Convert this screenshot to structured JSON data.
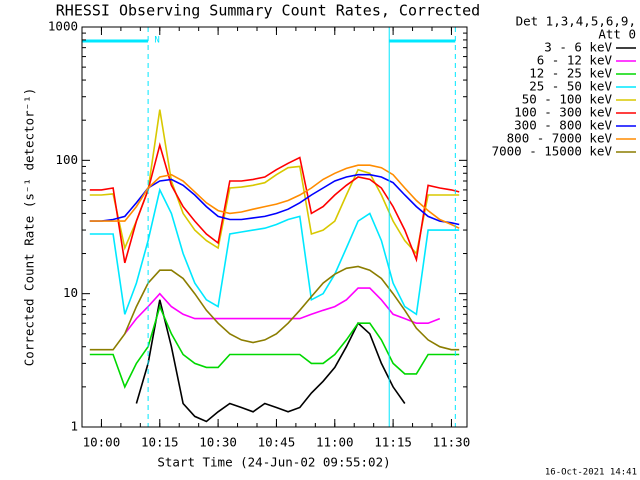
{
  "chart_data": {
    "type": "line",
    "title": "RHESSI Observing Summary Count Rates, Corrected",
    "xlabel": "Start Time (24-Jun-02 09:55:02)",
    "ylabel": "Corrected Count Rate (s⁻¹ detector⁻¹)",
    "legend_header": [
      "Det 1,3,4,5,6,9,",
      "Att 0"
    ],
    "footer": "16-Oct-2021 14:41",
    "log_scale": true,
    "xlim": [
      "09:55",
      "11:34"
    ],
    "xticks": [
      "10:00",
      "10:15",
      "10:30",
      "10:45",
      "11:00",
      "11:15",
      "11:30"
    ],
    "ylim": [
      1,
      1000
    ],
    "yticks": [
      1,
      10,
      100,
      1000
    ],
    "night": [
      {
        "start": "09:55",
        "end": "10:12"
      },
      {
        "start": "11:14",
        "end": "11:31"
      }
    ],
    "night_label": "N",
    "night_color": "#00e8ff",
    "x": [
      "09:57",
      "10:00",
      "10:03",
      "10:06",
      "10:09",
      "10:12",
      "10:15",
      "10:18",
      "10:21",
      "10:24",
      "10:27",
      "10:30",
      "10:33",
      "10:36",
      "10:39",
      "10:42",
      "10:45",
      "10:48",
      "10:51",
      "10:54",
      "10:57",
      "11:00",
      "11:03",
      "11:06",
      "11:09",
      "11:12",
      "11:15",
      "11:18",
      "11:21",
      "11:24",
      "11:27",
      "11:30",
      "11:32"
    ],
    "series": [
      {
        "name": "3 - 6 keV",
        "color": "#000000",
        "values": [
          null,
          null,
          null,
          null,
          1.5,
          3,
          9,
          4,
          1.5,
          1.2,
          1.1,
          1.3,
          1.5,
          1.4,
          1.3,
          1.5,
          1.4,
          1.3,
          1.4,
          1.8,
          2.2,
          2.8,
          4,
          6,
          5,
          3,
          2,
          1.5,
          null,
          null,
          null,
          null,
          null
        ]
      },
      {
        "name": "6 - 12 keV",
        "color": "#ff00ff",
        "values": [
          null,
          null,
          null,
          5,
          6.5,
          8,
          10,
          8,
          7,
          6.5,
          6.5,
          6.5,
          6.5,
          6.5,
          6.5,
          6.5,
          6.5,
          6.5,
          6.5,
          7,
          7.5,
          8,
          9,
          11,
          11,
          9,
          7,
          6.5,
          6,
          6,
          6.5,
          null,
          null
        ]
      },
      {
        "name": "12 - 25 keV",
        "color": "#00d800",
        "values": [
          3.5,
          3.5,
          3.5,
          2,
          3,
          4,
          8,
          5,
          3.5,
          3,
          2.8,
          2.8,
          3.5,
          3.5,
          3.5,
          3.5,
          3.5,
          3.5,
          3.5,
          3,
          3,
          3.5,
          4.5,
          6,
          6,
          4.5,
          3,
          2.5,
          2.5,
          3.5,
          3.5,
          3.5,
          3.5
        ]
      },
      {
        "name": "25 - 50 keV",
        "color": "#00e8ff",
        "values": [
          28,
          28,
          28,
          7,
          12,
          25,
          60,
          40,
          20,
          12,
          9,
          8,
          28,
          29,
          30,
          31,
          33,
          36,
          38,
          9,
          10,
          14,
          22,
          35,
          40,
          25,
          12,
          8,
          7,
          30,
          30,
          30,
          30
        ]
      },
      {
        "name": "50 - 100 keV",
        "color": "#d8c800",
        "values": [
          55,
          55,
          56,
          22,
          35,
          60,
          240,
          70,
          40,
          30,
          25,
          22,
          62,
          63,
          65,
          68,
          78,
          88,
          90,
          28,
          30,
          35,
          55,
          85,
          80,
          55,
          35,
          25,
          20,
          55,
          55,
          55,
          55
        ]
      },
      {
        "name": "100 - 300 keV",
        "color": "#ff0000",
        "values": [
          60,
          60,
          62,
          17,
          35,
          60,
          130,
          65,
          45,
          35,
          28,
          24,
          70,
          70,
          72,
          75,
          85,
          95,
          105,
          40,
          45,
          55,
          65,
          75,
          72,
          62,
          45,
          30,
          18,
          65,
          62,
          60,
          58
        ]
      },
      {
        "name": "300 - 800 keV",
        "color": "#0000ff",
        "values": [
          35,
          35,
          36,
          38,
          48,
          62,
          70,
          72,
          65,
          55,
          45,
          38,
          36,
          36,
          37,
          38,
          40,
          43,
          48,
          55,
          62,
          70,
          75,
          78,
          78,
          75,
          68,
          55,
          45,
          38,
          35,
          34,
          33
        ]
      },
      {
        "name": "800 - 7000 keV",
        "color": "#ff8c00",
        "values": [
          35,
          35,
          35,
          35,
          45,
          62,
          75,
          78,
          70,
          58,
          48,
          42,
          40,
          41,
          43,
          45,
          47,
          50,
          55,
          62,
          72,
          80,
          87,
          92,
          92,
          88,
          78,
          62,
          50,
          42,
          36,
          33,
          31
        ]
      },
      {
        "name": "7000 - 15000 keV",
        "color": "#8b7d00",
        "values": [
          3.8,
          3.8,
          3.8,
          5,
          8,
          12,
          15,
          15,
          13,
          10,
          7.5,
          6,
          5,
          4.5,
          4.3,
          4.5,
          5,
          6,
          7.5,
          9.5,
          12,
          14,
          15.5,
          16,
          15,
          13,
          10,
          7.5,
          5.5,
          4.5,
          4,
          3.8,
          3.8
        ]
      }
    ]
  }
}
